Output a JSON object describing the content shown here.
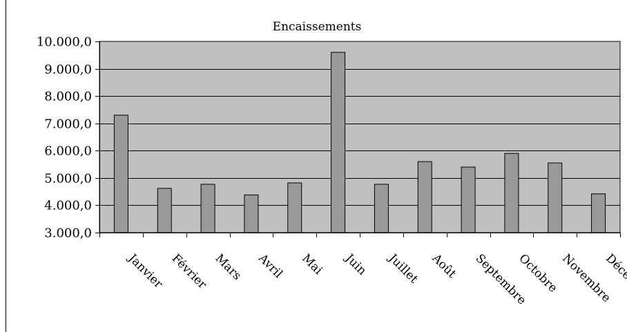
{
  "chart_data": {
    "type": "bar",
    "title": "Encaissements",
    "xlabel": "",
    "ylabel": "",
    "categories": [
      "Janvier",
      "Février",
      "Mars",
      "Avril",
      "Mai",
      "Juin",
      "Juillet",
      "Août",
      "Septembre",
      "Octobre",
      "Novembre",
      "Décembre"
    ],
    "values": [
      7300,
      4620,
      4770,
      4380,
      4820,
      9600,
      4770,
      5600,
      5400,
      5900,
      5550,
      4420
    ],
    "ylim": [
      3000,
      10000
    ],
    "yticks": [
      3000,
      4000,
      5000,
      6000,
      7000,
      8000,
      9000,
      10000
    ],
    "ytick_labels": [
      "3.000,0",
      "4.000,0",
      "5.000,0",
      "6.000,0",
      "7.000,0",
      "8.000,0",
      "9.000,0",
      "10.000,0"
    ],
    "grid": true,
    "legend": "none",
    "colors": {
      "plot_background": "#c0c0c0",
      "bar_fill": "#999999",
      "bar_stroke": "#000000",
      "gridline": "#000000",
      "axis": "#000000"
    }
  }
}
